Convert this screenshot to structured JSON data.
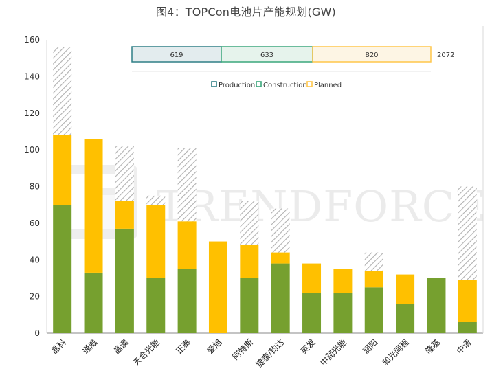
{
  "chart_data": {
    "type": "bar",
    "title": "图4：TOPCon电池片产能规划(GW)",
    "xlabel": "",
    "ylabel": "",
    "ylim": [
      0,
      160
    ],
    "yticks": [
      0,
      20,
      40,
      60,
      80,
      100,
      120,
      140,
      160
    ],
    "grid": false,
    "legend_position": "top",
    "categories": [
      "晶科",
      "通威",
      "晶澳",
      "天合光能",
      "正泰",
      "爱旭",
      "阿特斯",
      "捷泰/钧达",
      "英发",
      "中润光能",
      "润阳",
      "和光同程",
      "隆基",
      "中清"
    ],
    "series": [
      {
        "name": "Production",
        "color": "#76a02f",
        "values": [
          70,
          33,
          57,
          30,
          35,
          0,
          30,
          38,
          22,
          22,
          25,
          16,
          30,
          6
        ]
      },
      {
        "name": "Construction",
        "color": "#ffc000",
        "values": [
          38,
          73,
          15,
          40,
          26,
          50,
          18,
          6,
          16,
          13,
          9,
          16,
          0,
          23
        ]
      },
      {
        "name": "Planned",
        "color": "#b0b0b0",
        "values": [
          48,
          0,
          30,
          5,
          40,
          0,
          24,
          24,
          0,
          0,
          10,
          0,
          0,
          51
        ]
      }
    ],
    "totals": {
      "values": [
        "619",
        "633",
        "820"
      ],
      "grand_total": "2072"
    },
    "watermark": "TRENDFORCE"
  }
}
